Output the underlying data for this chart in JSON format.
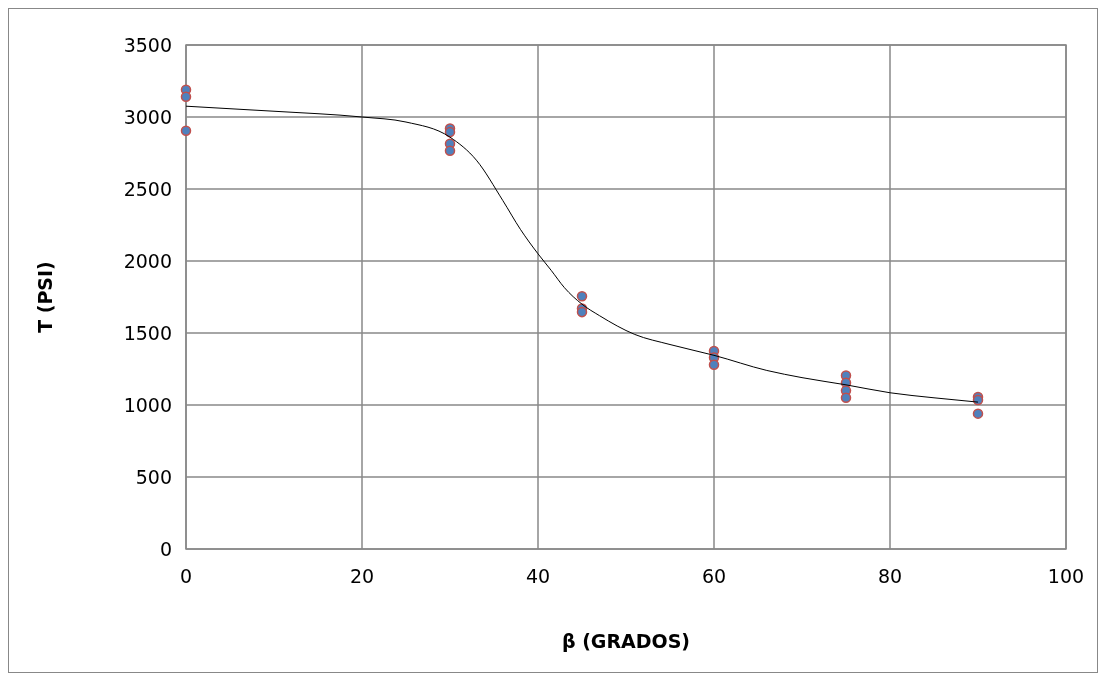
{
  "chart_data": {
    "type": "scatter",
    "xlabel": "β (GRADOS)",
    "ylabel": "T (PSI)",
    "xlim": [
      0,
      100
    ],
    "xticks": [
      0,
      20,
      40,
      60,
      80,
      100
    ],
    "ylim": [
      0,
      3500
    ],
    "yticks": [
      0,
      500,
      1000,
      1500,
      2000,
      2500,
      3000,
      3500
    ],
    "grid": true,
    "marker": "circle",
    "series": [
      {
        "color": "#4f81bd",
        "x": [
          0,
          0,
          0,
          30,
          30,
          30,
          30,
          45,
          45,
          45,
          60,
          60,
          60,
          75,
          75,
          75,
          75,
          90,
          90,
          90
        ],
        "values": [
          3190,
          3140,
          2905,
          2920,
          2895,
          2815,
          2765,
          1755,
          1670,
          1645,
          1375,
          1330,
          1280,
          1205,
          1155,
          1100,
          1050,
          1055,
          1035,
          940
        ]
      },
      {
        "type": "line",
        "color": "#000000",
        "marker": "none",
        "x": [
          0,
          10,
          20,
          25,
          30,
          33,
          36,
          38,
          40,
          41.5,
          43,
          45,
          47,
          51,
          55,
          60,
          66,
          70,
          75,
          80,
          85,
          90
        ],
        "values": [
          3075,
          3040,
          3000,
          2965,
          2860,
          2700,
          2420,
          2220,
          2050,
          1935,
          1815,
          1700,
          1620,
          1490,
          1420,
          1345,
          1240,
          1190,
          1140,
          1085,
          1050,
          1020
        ]
      }
    ]
  }
}
